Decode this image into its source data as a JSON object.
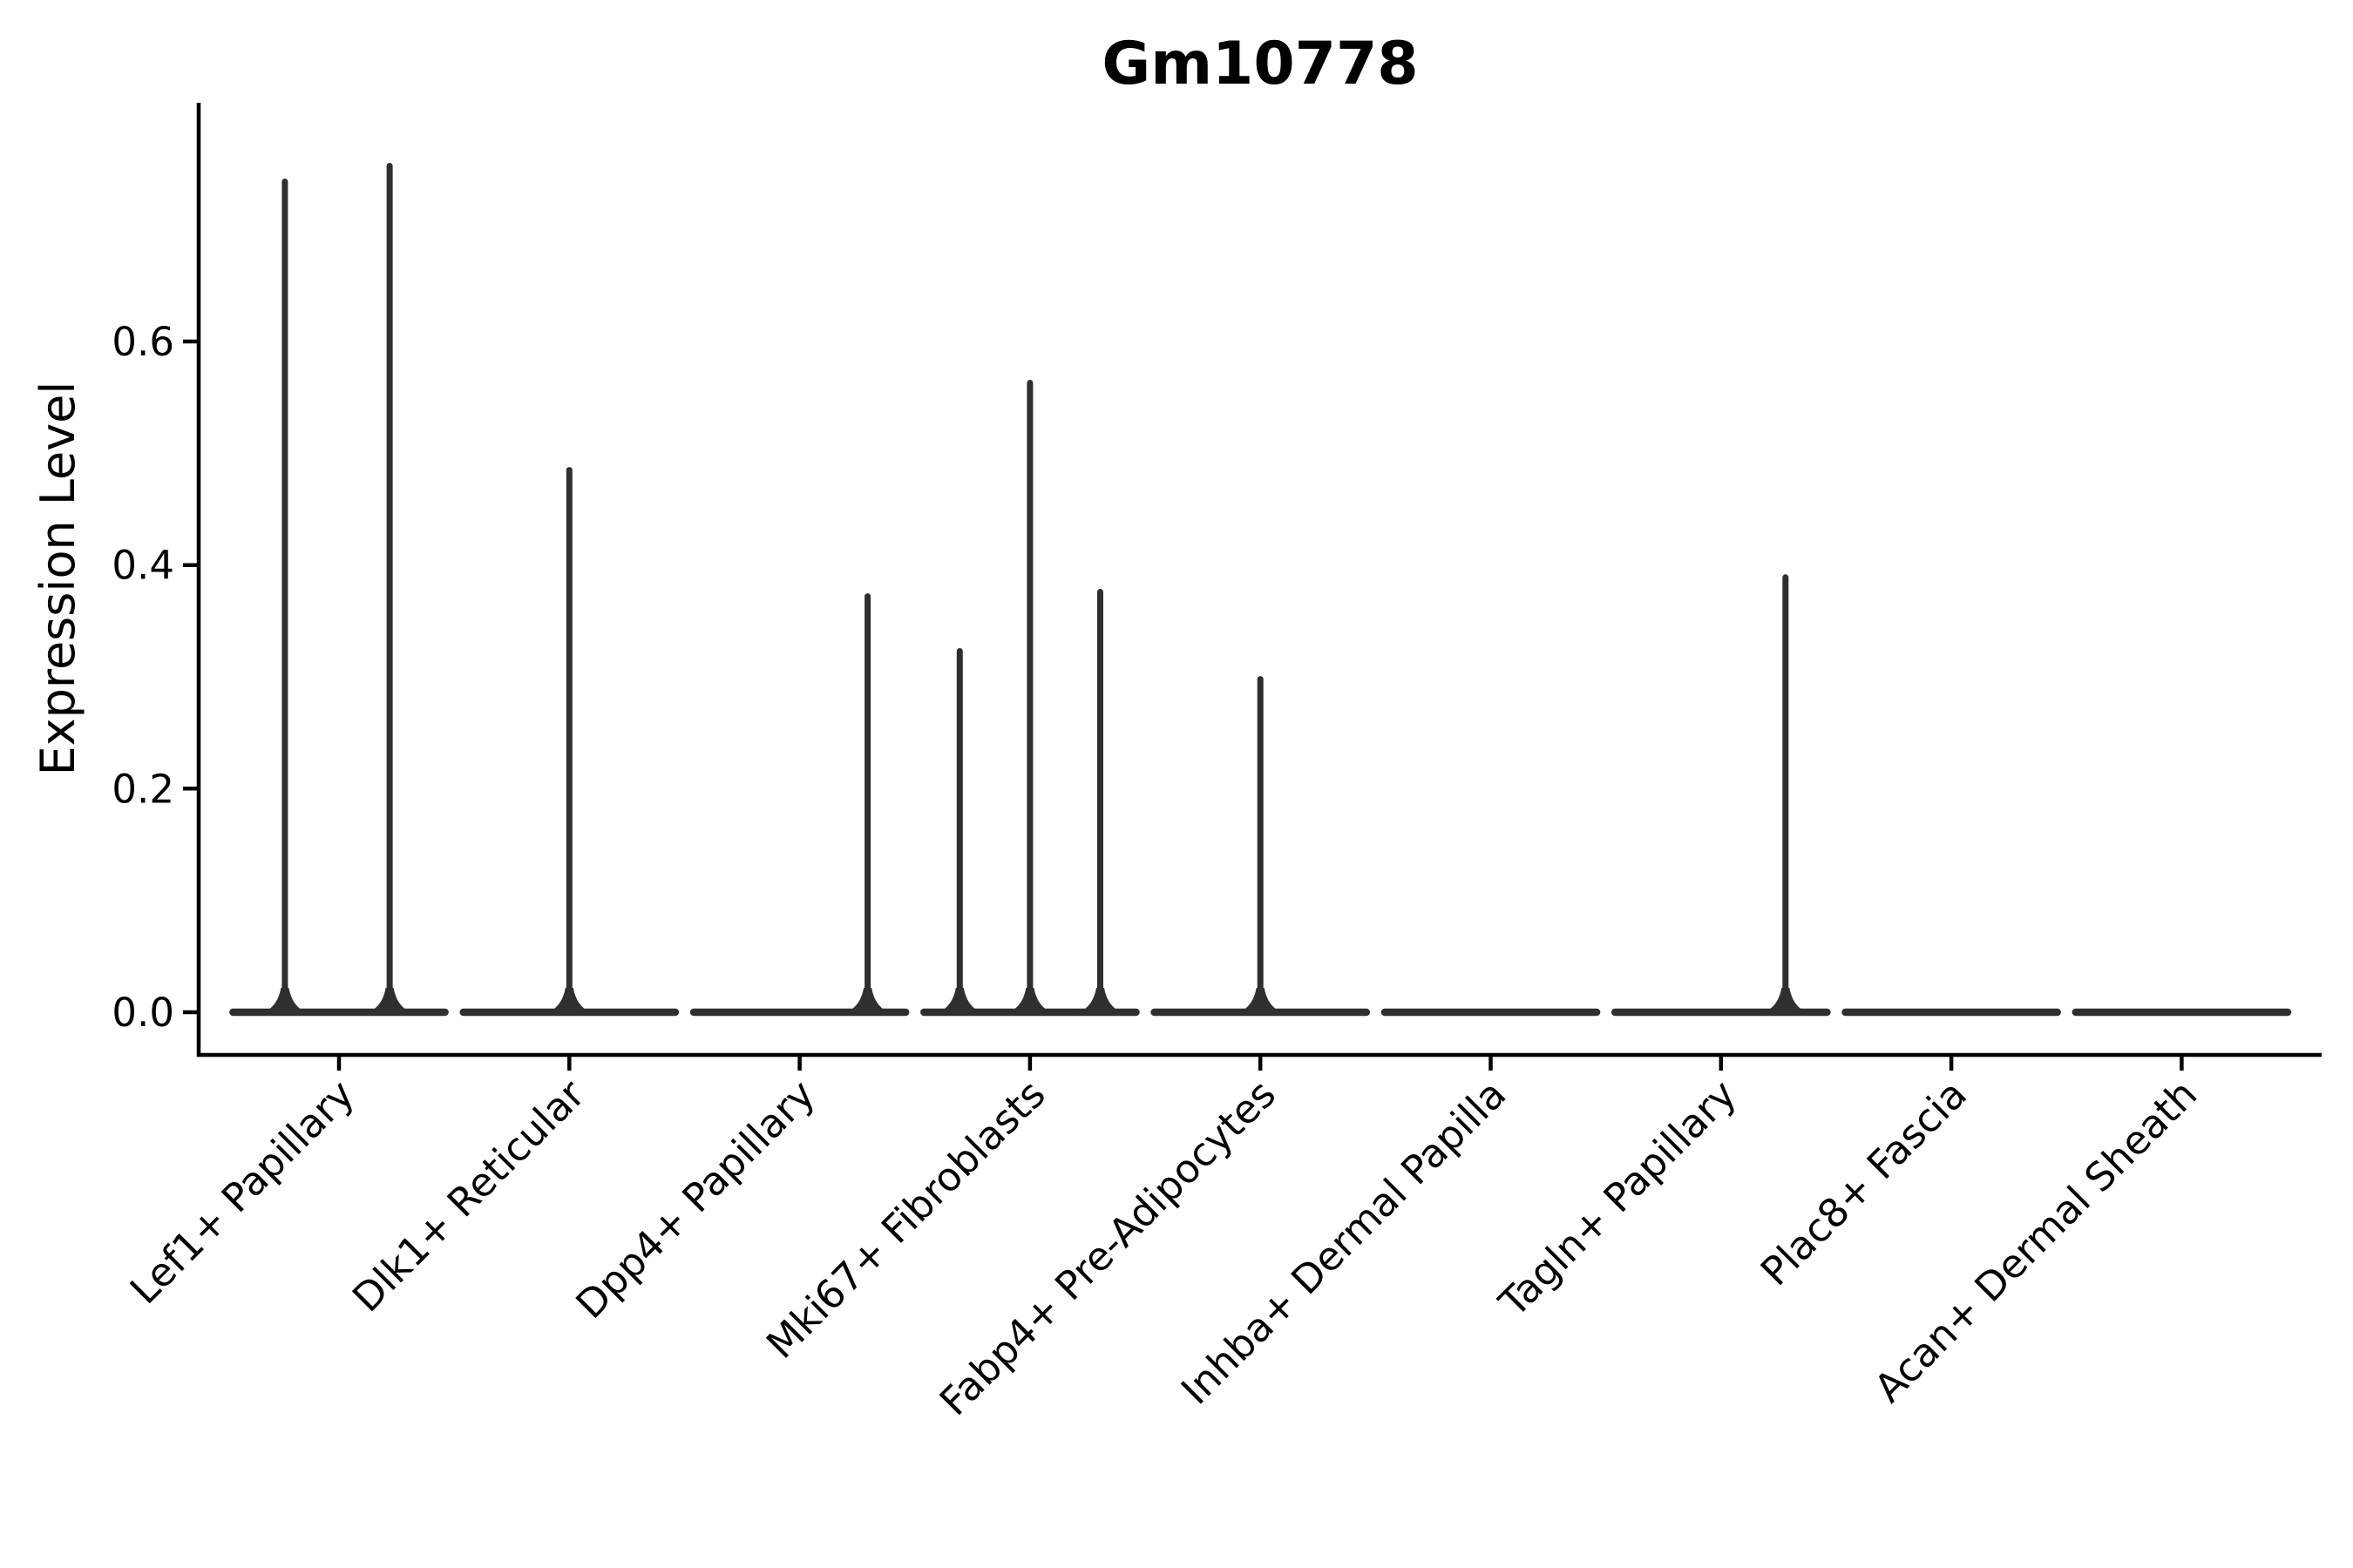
{
  "page": {
    "background": "#ffffff"
  },
  "chart_data": {
    "type": "violin",
    "title": "Gm10778",
    "ylabel": "Expression Level",
    "xlabel": "",
    "grid": false,
    "legend_position": "none",
    "axis_color": "#000000",
    "violin_line_color": "#2f2f2f",
    "ylim": [
      -0.038,
      0.814
    ],
    "yticks": [
      "0.0",
      "0.2",
      "0.4",
      "0.6"
    ],
    "ytick_values": [
      0.0,
      0.2,
      0.4,
      0.6
    ],
    "x_tick_rotation_deg": 45,
    "categories": [
      "Lef1+ Papillary",
      "Dlk1+ Reticular",
      "Dpp4+ Papillary",
      "Mki67+ Fibroblasts",
      "Fabp4+ Pre-Adipocytes",
      "Inhba+ Dermal Papilla",
      "Tagln+ Papillary",
      "Plac8+ Fascia",
      "Acan+ Dermal Sheath"
    ],
    "base_value": 0.0,
    "base_halfwidth_frac": 0.46,
    "series": [
      {
        "name": "Lef1+ Papillary",
        "spikes": [
          {
            "offset_frac": -0.235,
            "value": 0.743
          },
          {
            "offset_frac": 0.22,
            "value": 0.757
          }
        ]
      },
      {
        "name": "Dlk1+ Reticular",
        "spikes": [
          {
            "offset_frac": 0.0,
            "value": 0.485
          }
        ]
      },
      {
        "name": "Dpp4+ Papillary",
        "spikes": [
          {
            "offset_frac": 0.295,
            "value": 0.372
          }
        ]
      },
      {
        "name": "Mki67+ Fibroblasts",
        "spikes": [
          {
            "offset_frac": -0.305,
            "value": 0.323
          },
          {
            "offset_frac": 0.0,
            "value": 0.563
          },
          {
            "offset_frac": 0.305,
            "value": 0.376
          }
        ]
      },
      {
        "name": "Fabp4+ Pre-Adipocytes",
        "spikes": [
          {
            "offset_frac": 0.0,
            "value": 0.298
          }
        ]
      },
      {
        "name": "Inhba+ Dermal Papilla",
        "spikes": []
      },
      {
        "name": "Tagln+ Papillary",
        "spikes": [
          {
            "offset_frac": 0.28,
            "value": 0.389
          }
        ]
      },
      {
        "name": "Plac8+ Fascia",
        "spikes": []
      },
      {
        "name": "Acan+ Dermal Sheath",
        "spikes": []
      }
    ]
  }
}
